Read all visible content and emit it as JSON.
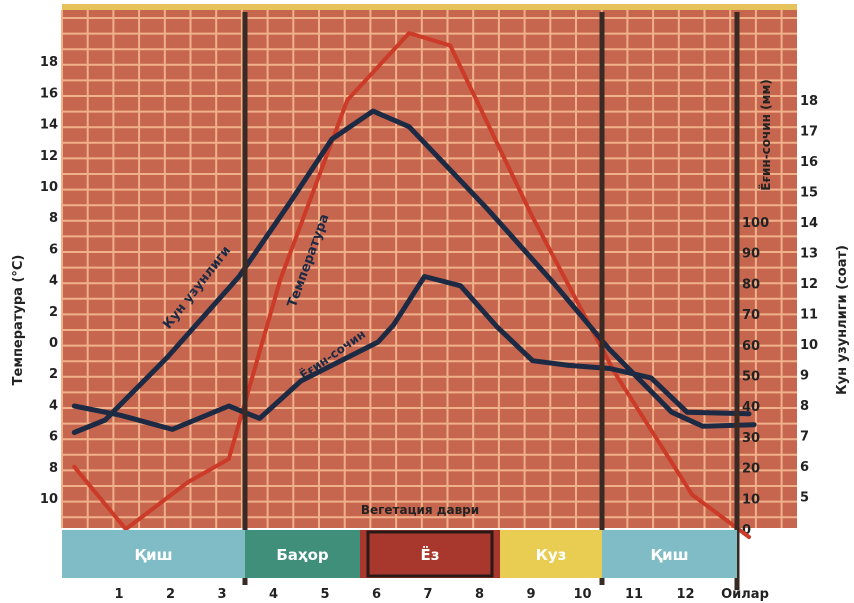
{
  "chart_data": {
    "type": "line",
    "months": [
      "1",
      "2",
      "3",
      "4",
      "5",
      "6",
      "7",
      "8",
      "9",
      "10",
      "11",
      "12"
    ],
    "x_end_label": "Ойлар",
    "left_axis": {
      "title": "Температура (°C)",
      "tick_labels": [
        "18",
        "16",
        "14",
        "12",
        "10",
        "8",
        "6",
        "4",
        "2",
        "0",
        "2",
        "4",
        "6",
        "8",
        "10"
      ],
      "values": [
        18,
        16,
        14,
        12,
        10,
        8,
        6,
        4,
        2,
        0,
        -2,
        -4,
        -6,
        -8,
        -10
      ]
    },
    "right_axis_precip": {
      "title": "Ёғин-сочин (мм)",
      "tick_labels": [
        "100",
        "90",
        "80",
        "70",
        "60",
        "50",
        "40",
        "30",
        "20",
        "10",
        "0"
      ]
    },
    "right_axis_day": {
      "title": "Кун узунлиги (соат)",
      "tick_labels": [
        "18",
        "17",
        "16",
        "15",
        "14",
        "13",
        "12",
        "11",
        "10",
        "9",
        "8",
        "7",
        "6",
        "5"
      ]
    },
    "series": [
      {
        "name": "Температура",
        "color": "#cc3a28",
        "points": [
          [
            0.2,
            -8
          ],
          [
            1.2,
            -12
          ],
          [
            2.4,
            -9
          ],
          [
            3.2,
            -7.5
          ],
          [
            4.2,
            4
          ],
          [
            5.5,
            15.5
          ],
          [
            6.7,
            19.8
          ],
          [
            7.5,
            19
          ],
          [
            9.1,
            8
          ],
          [
            10.7,
            -2
          ],
          [
            12.2,
            -9.8
          ],
          [
            13.3,
            -12.5
          ]
        ]
      },
      {
        "name": "Кун узунлиги",
        "color": "#1d2a44",
        "points": [
          [
            0.2,
            -5.8
          ],
          [
            0.8,
            -5
          ],
          [
            2.0,
            -1
          ],
          [
            3.4,
            4.2
          ],
          [
            4.4,
            9
          ],
          [
            5.2,
            13
          ],
          [
            6.0,
            14.8
          ],
          [
            6.7,
            13.8
          ],
          [
            8.2,
            8.6
          ],
          [
            9.5,
            3.8
          ],
          [
            10.6,
            -0.5
          ],
          [
            11.8,
            -4.5
          ],
          [
            12.4,
            -5.4
          ],
          [
            13.4,
            -5.3
          ]
        ]
      },
      {
        "name": "Ёғин-сочин",
        "color": "#1d2a44",
        "points": [
          [
            0.2,
            -4.1
          ],
          [
            1.1,
            -4.7
          ],
          [
            2.1,
            -5.6
          ],
          [
            3.2,
            -4.1
          ],
          [
            3.8,
            -4.9
          ],
          [
            4.6,
            -2.5
          ],
          [
            6.1,
            0
          ],
          [
            6.4,
            1.1
          ],
          [
            7.0,
            4.2
          ],
          [
            7.7,
            3.6
          ],
          [
            8.4,
            1
          ],
          [
            9.1,
            -1.2
          ],
          [
            9.8,
            -1.5
          ],
          [
            10.6,
            -1.7
          ],
          [
            11.4,
            -2.3
          ],
          [
            12.1,
            -4.5
          ],
          [
            13.3,
            -4.6
          ]
        ]
      }
    ],
    "seasons": [
      {
        "label": "Қиш",
        "color": "#7fbcc6"
      },
      {
        "label": "Баҳор",
        "color": "#3f8f7a"
      },
      {
        "label": "Ёз",
        "color": "#a8372d"
      },
      {
        "label": "Куз",
        "color": "#e9cd52"
      },
      {
        "label": "Қиш",
        "color": "#7fbcc6"
      }
    ],
    "vegetation_label": "Вегетация даври",
    "background": "#c6664f",
    "grid_color": "#f0b18a"
  }
}
